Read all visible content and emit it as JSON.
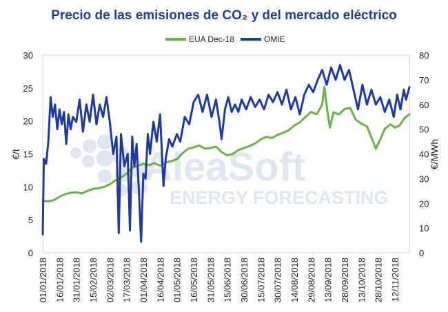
{
  "chart_data": {
    "type": "line",
    "title": "Precio de las emisiones de CO₂ y del mercado eléctrico",
    "ylabel_left": "€/t",
    "ylabel_right": "€/MWh",
    "ylim_left": [
      0,
      30
    ],
    "ylim_right": [
      0,
      80
    ],
    "yticks_left": [
      "0",
      "5",
      "10",
      "15",
      "20",
      "25",
      "30"
    ],
    "yticks_right": [
      "0",
      "10",
      "20",
      "30",
      "40",
      "50",
      "60",
      "70",
      "80"
    ],
    "x_start": "2018-01-01",
    "x_end": "2018-11-25",
    "xtick_labels": [
      "01/01/2018",
      "16/01/2018",
      "31/01/2018",
      "15/02/2018",
      "02/03/2018",
      "17/03/2018",
      "01/04/2018",
      "16/04/2018",
      "01/05/2018",
      "16/05/2018",
      "31/05/2018",
      "15/06/2018",
      "30/06/2018",
      "15/07/2018",
      "30/07/2018",
      "14/08/2018",
      "29/08/2018",
      "13/09/2018",
      "28/09/2018",
      "13/10/2018",
      "28/10/2018",
      "12/11/2018"
    ],
    "grid": false,
    "legend_position": "top-center",
    "series": [
      {
        "name": "EUA Dec-18",
        "axis": "left",
        "color": "#6ab04c",
        "points": [
          [
            "2018-01-01",
            7.9
          ],
          [
            "2018-01-06",
            7.8
          ],
          [
            "2018-01-11",
            8.0
          ],
          [
            "2018-01-16",
            8.5
          ],
          [
            "2018-01-21",
            8.9
          ],
          [
            "2018-01-26",
            9.1
          ],
          [
            "2018-01-31",
            9.2
          ],
          [
            "2018-02-05",
            9.0
          ],
          [
            "2018-02-10",
            9.4
          ],
          [
            "2018-02-15",
            9.7
          ],
          [
            "2018-02-20",
            9.8
          ],
          [
            "2018-02-25",
            10.0
          ],
          [
            "2018-03-02",
            10.4
          ],
          [
            "2018-03-07",
            11.0
          ],
          [
            "2018-03-12",
            11.4
          ],
          [
            "2018-03-17",
            12.0
          ],
          [
            "2018-03-22",
            12.9
          ],
          [
            "2018-03-27",
            13.2
          ],
          [
            "2018-04-01",
            13.5
          ],
          [
            "2018-04-06",
            13.3
          ],
          [
            "2018-04-11",
            13.6
          ],
          [
            "2018-04-16",
            13.2
          ],
          [
            "2018-04-21",
            13.7
          ],
          [
            "2018-04-26",
            13.9
          ],
          [
            "2018-05-01",
            14.2
          ],
          [
            "2018-05-06",
            15.1
          ],
          [
            "2018-05-11",
            15.8
          ],
          [
            "2018-05-16",
            16.0
          ],
          [
            "2018-05-21",
            16.3
          ],
          [
            "2018-05-26",
            15.8
          ],
          [
            "2018-05-31",
            15.9
          ],
          [
            "2018-06-05",
            16.1
          ],
          [
            "2018-06-10",
            15.3
          ],
          [
            "2018-06-15",
            14.8
          ],
          [
            "2018-06-20",
            15.0
          ],
          [
            "2018-06-25",
            15.6
          ],
          [
            "2018-06-30",
            15.9
          ],
          [
            "2018-07-05",
            16.2
          ],
          [
            "2018-07-10",
            16.6
          ],
          [
            "2018-07-15",
            17.2
          ],
          [
            "2018-07-20",
            17.6
          ],
          [
            "2018-07-25",
            17.4
          ],
          [
            "2018-07-30",
            17.9
          ],
          [
            "2018-08-04",
            18.2
          ],
          [
            "2018-08-09",
            18.6
          ],
          [
            "2018-08-14",
            19.3
          ],
          [
            "2018-08-19",
            19.8
          ],
          [
            "2018-08-24",
            20.6
          ],
          [
            "2018-08-29",
            21.4
          ],
          [
            "2018-09-03",
            21.0
          ],
          [
            "2018-09-08",
            22.5
          ],
          [
            "2018-09-10",
            25.2
          ],
          [
            "2018-09-13",
            21.0
          ],
          [
            "2018-09-15",
            19.0
          ],
          [
            "2018-09-18",
            21.3
          ],
          [
            "2018-09-23",
            21.0
          ],
          [
            "2018-09-28",
            21.8
          ],
          [
            "2018-10-03",
            22.0
          ],
          [
            "2018-10-08",
            20.2
          ],
          [
            "2018-10-13",
            19.6
          ],
          [
            "2018-10-18",
            19.2
          ],
          [
            "2018-10-22",
            17.5
          ],
          [
            "2018-10-26",
            15.8
          ],
          [
            "2018-10-30",
            17.2
          ],
          [
            "2018-11-03",
            18.8
          ],
          [
            "2018-11-08",
            19.5
          ],
          [
            "2018-11-12",
            19.0
          ],
          [
            "2018-11-16",
            19.3
          ],
          [
            "2018-11-21",
            20.5
          ],
          [
            "2018-11-25",
            21.0
          ]
        ]
      },
      {
        "name": "OMIE",
        "axis": "right",
        "color": "#1e3a9c",
        "points": [
          [
            "2018-01-01",
            7.5
          ],
          [
            "2018-01-02",
            38.0
          ],
          [
            "2018-01-04",
            36.0
          ],
          [
            "2018-01-06",
            45.0
          ],
          [
            "2018-01-08",
            63.0
          ],
          [
            "2018-01-10",
            55.0
          ],
          [
            "2018-01-12",
            60.0
          ],
          [
            "2018-01-14",
            50.0
          ],
          [
            "2018-01-16",
            58.0
          ],
          [
            "2018-01-18",
            52.0
          ],
          [
            "2018-01-20",
            57.0
          ],
          [
            "2018-01-22",
            44.0
          ],
          [
            "2018-01-24",
            56.0
          ],
          [
            "2018-01-26",
            50.0
          ],
          [
            "2018-01-28",
            55.0
          ],
          [
            "2018-01-31",
            53.0
          ],
          [
            "2018-02-03",
            62.0
          ],
          [
            "2018-02-06",
            49.0
          ],
          [
            "2018-02-09",
            60.0
          ],
          [
            "2018-02-12",
            53.0
          ],
          [
            "2018-02-15",
            64.0
          ],
          [
            "2018-02-18",
            52.0
          ],
          [
            "2018-02-21",
            60.0
          ],
          [
            "2018-02-24",
            55.0
          ],
          [
            "2018-02-27",
            63.0
          ],
          [
            "2018-03-02",
            53.0
          ],
          [
            "2018-03-05",
            40.0
          ],
          [
            "2018-03-08",
            47.0
          ],
          [
            "2018-03-10",
            8.0
          ],
          [
            "2018-03-12",
            48.0
          ],
          [
            "2018-03-15",
            35.0
          ],
          [
            "2018-03-18",
            40.0
          ],
          [
            "2018-03-20",
            9.0
          ],
          [
            "2018-03-22",
            47.0
          ],
          [
            "2018-03-24",
            35.0
          ],
          [
            "2018-03-26",
            44.0
          ],
          [
            "2018-03-28",
            25.0
          ],
          [
            "2018-03-30",
            4.5
          ],
          [
            "2018-04-01",
            32.0
          ],
          [
            "2018-04-03",
            30.0
          ],
          [
            "2018-04-05",
            48.0
          ],
          [
            "2018-04-07",
            40.0
          ],
          [
            "2018-04-10",
            53.0
          ],
          [
            "2018-04-13",
            45.0
          ],
          [
            "2018-04-16",
            56.0
          ],
          [
            "2018-04-19",
            27.0
          ],
          [
            "2018-04-21",
            38.0
          ],
          [
            "2018-04-24",
            46.0
          ],
          [
            "2018-04-27",
            43.0
          ],
          [
            "2018-05-01",
            48.0
          ],
          [
            "2018-05-04",
            45.0
          ],
          [
            "2018-05-08",
            55.0
          ],
          [
            "2018-05-12",
            52.0
          ],
          [
            "2018-05-16",
            61.0
          ],
          [
            "2018-05-20",
            64.0
          ],
          [
            "2018-05-24",
            57.0
          ],
          [
            "2018-05-28",
            64.0
          ],
          [
            "2018-06-01",
            55.0
          ],
          [
            "2018-06-05",
            62.0
          ],
          [
            "2018-06-08",
            53.0
          ],
          [
            "2018-06-10",
            46.0
          ],
          [
            "2018-06-13",
            58.0
          ],
          [
            "2018-06-16",
            63.0
          ],
          [
            "2018-06-19",
            57.0
          ],
          [
            "2018-06-22",
            60.0
          ],
          [
            "2018-06-25",
            57.0
          ],
          [
            "2018-06-28",
            62.0
          ],
          [
            "2018-07-02",
            58.0
          ],
          [
            "2018-07-06",
            63.0
          ],
          [
            "2018-07-10",
            59.0
          ],
          [
            "2018-07-14",
            62.0
          ],
          [
            "2018-07-18",
            58.0
          ],
          [
            "2018-07-22",
            64.0
          ],
          [
            "2018-07-26",
            61.0
          ],
          [
            "2018-07-30",
            65.0
          ],
          [
            "2018-08-03",
            60.0
          ],
          [
            "2018-08-07",
            66.0
          ],
          [
            "2018-08-11",
            58.0
          ],
          [
            "2018-08-15",
            63.0
          ],
          [
            "2018-08-19",
            56.0
          ],
          [
            "2018-08-23",
            64.0
          ],
          [
            "2018-08-27",
            68.0
          ],
          [
            "2018-08-31",
            65.0
          ],
          [
            "2018-09-04",
            70.0
          ],
          [
            "2018-09-08",
            74.0
          ],
          [
            "2018-09-12",
            68.0
          ],
          [
            "2018-09-16",
            75.0
          ],
          [
            "2018-09-20",
            70.0
          ],
          [
            "2018-09-24",
            76.0
          ],
          [
            "2018-09-28",
            70.0
          ],
          [
            "2018-10-02",
            74.0
          ],
          [
            "2018-10-06",
            66.0
          ],
          [
            "2018-10-10",
            58.0
          ],
          [
            "2018-10-14",
            68.0
          ],
          [
            "2018-10-18",
            60.0
          ],
          [
            "2018-10-22",
            66.0
          ],
          [
            "2018-10-26",
            60.0
          ],
          [
            "2018-10-30",
            63.0
          ],
          [
            "2018-11-03",
            57.0
          ],
          [
            "2018-11-07",
            62.0
          ],
          [
            "2018-11-11",
            55.0
          ],
          [
            "2018-11-14",
            64.0
          ],
          [
            "2018-11-17",
            58.0
          ],
          [
            "2018-11-20",
            66.0
          ],
          [
            "2018-11-22",
            62.0
          ],
          [
            "2018-11-25",
            67.0
          ]
        ]
      }
    ]
  },
  "watermark": {
    "brand": "AleaSoft",
    "subtitle": "ENERGY FORECASTING"
  }
}
